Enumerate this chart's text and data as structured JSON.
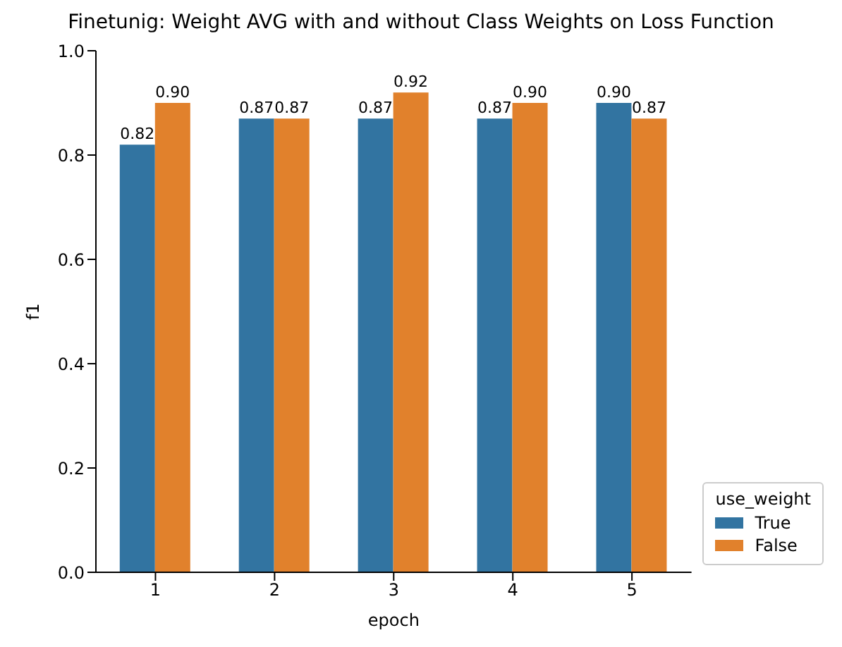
{
  "chart_data": {
    "type": "bar",
    "title": "Finetunig: Weight AVG with and without Class Weights on Loss Function",
    "xlabel": "epoch",
    "ylabel": "f1",
    "legend_title": "use_weight",
    "categories": [
      "1",
      "2",
      "3",
      "4",
      "5"
    ],
    "series": [
      {
        "name": "True",
        "color": "#3274a1",
        "values": [
          0.82,
          0.87,
          0.87,
          0.87,
          0.9
        ],
        "value_labels": [
          "0.82",
          "0.87",
          "0.87",
          "0.87",
          "0.90"
        ]
      },
      {
        "name": "False",
        "color": "#e1812c",
        "values": [
          0.9,
          0.87,
          0.92,
          0.9,
          0.87
        ],
        "value_labels": [
          "0.90",
          "0.87",
          "0.92",
          "0.90",
          "0.87"
        ]
      }
    ],
    "ylim": [
      0,
      1
    ],
    "yticks": [
      {
        "value": 0,
        "label": "0.0"
      },
      0.2,
      0.4,
      0.6,
      0.8,
      {
        "value": 1,
        "label": "1.0"
      }
    ],
    "legend": "bottom right"
  }
}
